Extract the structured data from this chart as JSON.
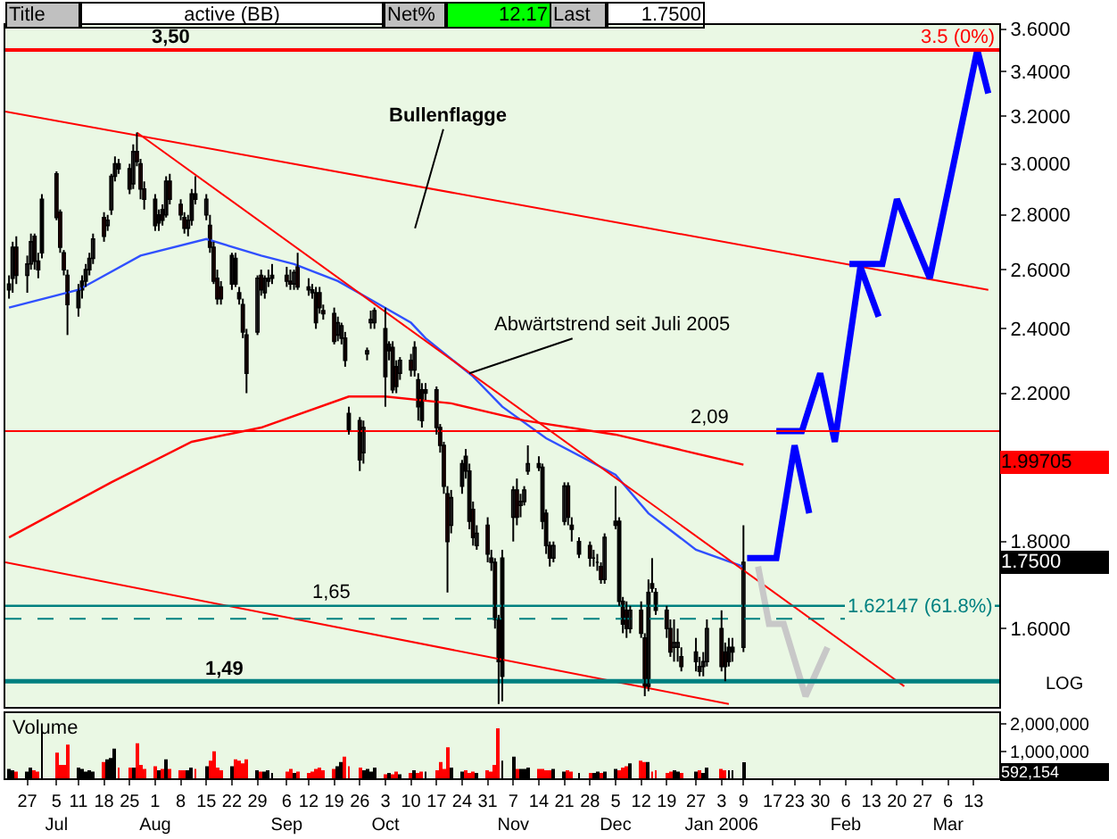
{
  "chart_data": [
    {
      "type": "candlestick",
      "log": true,
      "tick_labels": "y",
      "xlim": [
        "2005-06-21",
        "2006-03-20"
      ],
      "ylim": [
        1.44,
        3.62
      ],
      "yticks": [
        {
          "value": 1.6,
          "label": "1.6000"
        },
        {
          "value": 1.8,
          "label": "1.8000"
        },
        {
          "value": 2.0,
          "label": null
        },
        {
          "value": 2.2,
          "label": "2.2000"
        },
        {
          "value": 2.4,
          "label": "2.4000"
        },
        {
          "value": 2.6,
          "label": "2.6000"
        },
        {
          "value": 2.8,
          "label": "2.8000"
        },
        {
          "value": 3.0,
          "label": "3.0000"
        },
        {
          "value": 3.2,
          "label": "3.2000"
        },
        {
          "value": 3.4,
          "label": "3.4000"
        },
        {
          "value": 3.6,
          "label": "3.6000"
        }
      ],
      "x": [
        "2005-06-22",
        "2005-06-23",
        "2005-06-24",
        "2005-06-27",
        "2005-06-28",
        "2005-06-29",
        "2005-06-30",
        "2005-07-01",
        "2005-07-05",
        "2005-07-06",
        "2005-07-07",
        "2005-07-08",
        "2005-07-11",
        "2005-07-12",
        "2005-07-13",
        "2005-07-14",
        "2005-07-15",
        "2005-07-18",
        "2005-07-19",
        "2005-07-20",
        "2005-07-21",
        "2005-07-22",
        "2005-07-25",
        "2005-07-26",
        "2005-07-27",
        "2005-07-28",
        "2005-07-29",
        "2005-08-01",
        "2005-08-02",
        "2005-08-03",
        "2005-08-04",
        "2005-08-05",
        "2005-08-08",
        "2005-08-09",
        "2005-08-10",
        "2005-08-11",
        "2005-08-12",
        "2005-08-15",
        "2005-08-16",
        "2005-08-17",
        "2005-08-18",
        "2005-08-19",
        "2005-08-22",
        "2005-08-23",
        "2005-08-24",
        "2005-08-25",
        "2005-08-26",
        "2005-08-29",
        "2005-08-30",
        "2005-08-31",
        "2005-09-01",
        "2005-09-02",
        "2005-09-06",
        "2005-09-07",
        "2005-09-08",
        "2005-09-09",
        "2005-09-12",
        "2005-09-13",
        "2005-09-14",
        "2005-09-15",
        "2005-09-16",
        "2005-09-19",
        "2005-09-20",
        "2005-09-21",
        "2005-09-22",
        "2005-09-23",
        "2005-09-26",
        "2005-09-27",
        "2005-09-28",
        "2005-09-29",
        "2005-09-30",
        "2005-10-03",
        "2005-10-04",
        "2005-10-05",
        "2005-10-06",
        "2005-10-07",
        "2005-10-10",
        "2005-10-11",
        "2005-10-12",
        "2005-10-13",
        "2005-10-14",
        "2005-10-17",
        "2005-10-18",
        "2005-10-19",
        "2005-10-20",
        "2005-10-21",
        "2005-10-24",
        "2005-10-25",
        "2005-10-26",
        "2005-10-27",
        "2005-10-28",
        "2005-10-31",
        "2005-11-01",
        "2005-11-02",
        "2005-11-03",
        "2005-11-04",
        "2005-11-07",
        "2005-11-08",
        "2005-11-09",
        "2005-11-10",
        "2005-11-11",
        "2005-11-14",
        "2005-11-15",
        "2005-11-16",
        "2005-11-17",
        "2005-11-18",
        "2005-11-21",
        "2005-11-22",
        "2005-11-23",
        "2005-11-25",
        "2005-11-28",
        "2005-11-29",
        "2005-11-30",
        "2005-12-01",
        "2005-12-02",
        "2005-12-05",
        "2005-12-06",
        "2005-12-07",
        "2005-12-08",
        "2005-12-09",
        "2005-12-12",
        "2005-12-13",
        "2005-12-14",
        "2005-12-15",
        "2005-12-16",
        "2005-12-19",
        "2005-12-20",
        "2005-12-21",
        "2005-12-22",
        "2005-12-23",
        "2005-12-27",
        "2005-12-28",
        "2005-12-29",
        "2005-12-30",
        "2006-01-03",
        "2006-01-04",
        "2006-01-05",
        "2006-01-06",
        "2006-01-09"
      ],
      "ohlc": [
        [
          2.53,
          2.58,
          2.5,
          2.55
        ],
        [
          2.57,
          2.7,
          2.52,
          2.68
        ],
        [
          2.68,
          2.72,
          2.55,
          2.58
        ],
        [
          2.58,
          2.65,
          2.52,
          2.62
        ],
        [
          2.62,
          2.73,
          2.6,
          2.7
        ],
        [
          2.72,
          2.73,
          2.6,
          2.63
        ],
        [
          2.63,
          2.66,
          2.57,
          2.6
        ],
        [
          2.66,
          2.88,
          2.64,
          2.86
        ],
        [
          2.96,
          2.97,
          2.78,
          2.79
        ],
        [
          2.81,
          2.82,
          2.66,
          2.68
        ],
        [
          2.66,
          2.67,
          2.58,
          2.6
        ],
        [
          2.58,
          2.6,
          2.38,
          2.48
        ],
        [
          2.47,
          2.55,
          2.44,
          2.53
        ],
        [
          2.53,
          2.58,
          2.5,
          2.56
        ],
        [
          2.56,
          2.62,
          2.54,
          2.6
        ],
        [
          2.6,
          2.66,
          2.58,
          2.64
        ],
        [
          2.64,
          2.73,
          2.62,
          2.71
        ],
        [
          2.79,
          2.81,
          2.7,
          2.72
        ],
        [
          2.76,
          2.8,
          2.74,
          2.78
        ],
        [
          2.82,
          2.96,
          2.8,
          2.95
        ],
        [
          2.95,
          3.03,
          2.93,
          3.0
        ],
        [
          3.0,
          3.02,
          2.96,
          2.98
        ],
        [
          2.98,
          3.0,
          2.88,
          2.9
        ],
        [
          2.92,
          3.08,
          2.9,
          3.05
        ],
        [
          3.05,
          3.13,
          2.99,
          3.01
        ],
        [
          3.0,
          3.02,
          2.86,
          2.9
        ],
        [
          2.9,
          2.93,
          2.82,
          2.86
        ],
        [
          2.86,
          2.88,
          2.74,
          2.76
        ],
        [
          2.77,
          2.82,
          2.74,
          2.8
        ],
        [
          2.82,
          2.84,
          2.76,
          2.78
        ],
        [
          2.8,
          2.95,
          2.79,
          2.93
        ],
        [
          2.93,
          2.96,
          2.84,
          2.86
        ],
        [
          2.84,
          2.86,
          2.78,
          2.8
        ],
        [
          2.79,
          2.81,
          2.73,
          2.75
        ],
        [
          2.75,
          2.8,
          2.72,
          2.78
        ],
        [
          2.78,
          2.9,
          2.76,
          2.88
        ],
        [
          2.88,
          2.95,
          2.84,
          2.86
        ],
        [
          2.8,
          2.88,
          2.78,
          2.86
        ],
        [
          2.76,
          2.8,
          2.66,
          2.68
        ],
        [
          2.68,
          2.7,
          2.55,
          2.56
        ],
        [
          2.57,
          2.6,
          2.48,
          2.5
        ],
        [
          2.54,
          2.56,
          2.48,
          2.5
        ],
        [
          2.55,
          2.66,
          2.53,
          2.65
        ],
        [
          2.64,
          2.66,
          2.54,
          2.55
        ],
        [
          2.52,
          2.54,
          2.48,
          2.5
        ],
        [
          2.48,
          2.5,
          2.37,
          2.39
        ],
        [
          2.38,
          2.4,
          2.2,
          2.26
        ],
        [
          2.39,
          2.58,
          2.38,
          2.57
        ],
        [
          2.58,
          2.6,
          2.51,
          2.53
        ],
        [
          2.52,
          2.58,
          2.5,
          2.57
        ],
        [
          2.56,
          2.6,
          2.54,
          2.57
        ],
        [
          2.57,
          2.62,
          2.55,
          2.58
        ],
        [
          2.58,
          2.61,
          2.54,
          2.56
        ],
        [
          2.56,
          2.6,
          2.53,
          2.55
        ],
        [
          2.55,
          2.6,
          2.53,
          2.59
        ],
        [
          2.61,
          2.66,
          2.53,
          2.54
        ],
        [
          2.54,
          2.57,
          2.51,
          2.53
        ],
        [
          2.53,
          2.55,
          2.5,
          2.52
        ],
        [
          2.52,
          2.54,
          2.4,
          2.42
        ],
        [
          2.52,
          2.54,
          2.45,
          2.47
        ],
        [
          2.46,
          2.48,
          2.43,
          2.45
        ],
        [
          2.45,
          2.47,
          2.35,
          2.36
        ],
        [
          2.38,
          2.44,
          2.36,
          2.42
        ],
        [
          2.37,
          2.42,
          2.35,
          2.41
        ],
        [
          2.37,
          2.39,
          2.28,
          2.3
        ],
        [
          2.14,
          2.16,
          2.08,
          2.09
        ],
        [
          2.12,
          2.13,
          1.98,
          2.01
        ],
        [
          2.03,
          2.12,
          2.0,
          2.1
        ],
        [
          2.32,
          2.34,
          2.3,
          2.33
        ],
        [
          2.42,
          2.46,
          2.4,
          2.43
        ],
        [
          2.42,
          2.47,
          2.4,
          2.46
        ],
        [
          2.4,
          2.47,
          2.16,
          2.25
        ],
        [
          2.33,
          2.36,
          2.3,
          2.35
        ],
        [
          2.34,
          2.36,
          2.2,
          2.21
        ],
        [
          2.28,
          2.3,
          2.2,
          2.22
        ],
        [
          2.26,
          2.31,
          2.24,
          2.3
        ],
        [
          2.3,
          2.32,
          2.25,
          2.27
        ],
        [
          2.27,
          2.36,
          2.25,
          2.34
        ],
        [
          2.24,
          2.26,
          2.12,
          2.16
        ],
        [
          2.21,
          2.23,
          2.1,
          2.12
        ],
        [
          2.2,
          2.23,
          2.18,
          2.21
        ],
        [
          2.21,
          2.22,
          2.08,
          2.1
        ],
        [
          2.1,
          2.11,
          2.03,
          2.05
        ],
        [
          2.05,
          2.06,
          1.92,
          1.94
        ],
        [
          1.92,
          1.94,
          1.68,
          1.8
        ],
        [
          1.84,
          1.93,
          1.82,
          1.91
        ],
        [
          1.94,
          2.01,
          1.92,
          2.0
        ],
        [
          2.02,
          2.04,
          1.96,
          1.98
        ],
        [
          1.98,
          2.0,
          1.83,
          1.85
        ],
        [
          1.88,
          1.9,
          1.79,
          1.81
        ],
        [
          1.79,
          1.84,
          1.78,
          1.82
        ],
        [
          1.84,
          1.86,
          1.75,
          1.77
        ],
        [
          1.76,
          1.78,
          1.73,
          1.75
        ],
        [
          1.75,
          1.76,
          1.6,
          1.62
        ],
        [
          1.62,
          1.63,
          1.445,
          1.53
        ],
        [
          1.5,
          1.78,
          1.45,
          1.76
        ],
        [
          1.86,
          1.94,
          1.8,
          1.93
        ],
        [
          1.93,
          1.96,
          1.84,
          1.86
        ],
        [
          1.89,
          1.92,
          1.86,
          1.9
        ],
        [
          1.9,
          1.94,
          1.89,
          1.93
        ],
        [
          1.98,
          2.05,
          1.97,
          2.0
        ],
        [
          2.0,
          2.02,
          1.98,
          1.99
        ],
        [
          1.99,
          2.0,
          1.83,
          1.85
        ],
        [
          1.87,
          1.88,
          1.77,
          1.79
        ],
        [
          1.79,
          1.8,
          1.74,
          1.76
        ],
        [
          1.76,
          1.8,
          1.75,
          1.79
        ],
        [
          1.85,
          1.95,
          1.84,
          1.94
        ],
        [
          1.94,
          1.95,
          1.84,
          1.86
        ],
        [
          1.84,
          1.86,
          1.8,
          1.83
        ],
        [
          1.77,
          1.81,
          1.76,
          1.8
        ],
        [
          1.79,
          1.8,
          1.74,
          1.76
        ],
        [
          1.76,
          1.78,
          1.74,
          1.76
        ],
        [
          1.75,
          1.77,
          1.73,
          1.75
        ],
        [
          1.74,
          1.75,
          1.7,
          1.71
        ],
        [
          1.71,
          1.82,
          1.7,
          1.81
        ],
        [
          1.84,
          1.94,
          1.83,
          1.85
        ],
        [
          1.85,
          1.86,
          1.65,
          1.66
        ],
        [
          1.66,
          1.67,
          1.59,
          1.61
        ],
        [
          1.64,
          1.66,
          1.58,
          1.6
        ],
        [
          1.6,
          1.65,
          1.59,
          1.64
        ],
        [
          1.64,
          1.66,
          1.58,
          1.59
        ],
        [
          1.58,
          1.59,
          1.46,
          1.48
        ],
        [
          1.48,
          1.71,
          1.47,
          1.68
        ],
        [
          1.7,
          1.76,
          1.68,
          1.69
        ],
        [
          1.68,
          1.69,
          1.63,
          1.64
        ],
        [
          1.64,
          1.65,
          1.58,
          1.6
        ],
        [
          1.6,
          1.62,
          1.54,
          1.55
        ],
        [
          1.56,
          1.62,
          1.53,
          1.57
        ],
        [
          1.56,
          1.6,
          1.53,
          1.57
        ],
        [
          1.54,
          1.56,
          1.51,
          1.52
        ],
        [
          1.53,
          1.58,
          1.51,
          1.55
        ],
        [
          1.52,
          1.54,
          1.5,
          1.51
        ],
        [
          1.52,
          1.55,
          1.5,
          1.53
        ],
        [
          1.53,
          1.62,
          1.52,
          1.6
        ],
        [
          1.6,
          1.64,
          1.51,
          1.52
        ],
        [
          1.55,
          1.57,
          1.49,
          1.52
        ],
        [
          1.53,
          1.58,
          1.52,
          1.56
        ],
        [
          1.55,
          1.58,
          1.53,
          1.56
        ],
        [
          1.56,
          1.84,
          1.55,
          1.75
        ]
      ],
      "series": [
        {
          "type": "line",
          "color": "#3050ff",
          "x": [
            "2005-06-22",
            "2005-07-11",
            "2005-07-28",
            "2005-08-15",
            "2005-08-30",
            "2005-09-08",
            "2005-09-20",
            "2005-09-30",
            "2005-10-10",
            "2005-10-14",
            "2005-10-27",
            "2005-11-04",
            "2005-11-16",
            "2005-12-05",
            "2005-12-14",
            "2005-12-27",
            "2006-01-09"
          ],
          "values": [
            2.47,
            2.53,
            2.65,
            2.71,
            2.65,
            2.62,
            2.56,
            2.49,
            2.42,
            2.37,
            2.25,
            2.16,
            2.07,
            1.97,
            1.87,
            1.78,
            1.74
          ]
        },
        {
          "type": "line",
          "color": "#ff0000",
          "x": [
            "2005-06-22",
            "2005-07-20",
            "2005-08-11",
            "2005-08-30",
            "2005-09-23",
            "2005-10-03",
            "2005-10-21",
            "2005-11-10",
            "2005-12-05",
            "2006-01-09"
          ],
          "values": [
            1.81,
            1.95,
            2.06,
            2.1,
            2.19,
            2.19,
            2.17,
            2.12,
            2.08,
            1.99705
          ]
        },
        {
          "type": "line",
          "color": "#ff0000",
          "x": [
            "2005-06-21",
            "2006-03-17"
          ],
          "values": [
            3.22,
            2.53
          ]
        },
        {
          "type": "line",
          "color": "#ff0000",
          "x": [
            "2005-06-21",
            "2006-01-05"
          ],
          "values": [
            1.75,
            1.445
          ]
        },
        {
          "type": "line",
          "color": "#ff0000",
          "x": [
            "2005-07-27",
            "2006-02-22"
          ],
          "values": [
            3.13,
            1.48
          ]
        },
        {
          "type": "line",
          "color": "#0000ff",
          "x": [
            "2006-01-10",
            "2006-01-18",
            "2006-01-23",
            "2006-01-27"
          ],
          "values": [
            1.76,
            1.76,
            2.05,
            1.87
          ]
        },
        {
          "type": "line",
          "color": "#0000ff",
          "x": [
            "2006-01-18",
            "2006-01-25",
            "2006-01-30",
            "2006-02-03",
            "2006-02-10",
            "2006-02-15"
          ],
          "values": [
            2.09,
            2.09,
            2.26,
            2.06,
            2.61,
            2.44
          ]
        },
        {
          "type": "line",
          "color": "#0000ff",
          "x": [
            "2006-02-07",
            "2006-02-16",
            "2006-02-20",
            "2006-03-01",
            "2006-03-14",
            "2006-03-17"
          ],
          "values": [
            2.62,
            2.62,
            2.86,
            2.57,
            3.5,
            3.3
          ]
        },
        {
          "type": "line",
          "color": "#c8c8c8",
          "x": [
            "2006-01-13",
            "2006-01-16",
            "2006-01-20",
            "2006-01-26",
            "2006-02-01"
          ],
          "values": [
            1.74,
            1.61,
            1.61,
            1.46,
            1.56
          ]
        }
      ],
      "ref_lines": [
        {
          "axis": "y",
          "value": 3.5,
          "label": "3,50",
          "color": "#ff0000"
        },
        {
          "axis": "y",
          "value": 2.09,
          "label": "2,09",
          "color": "#ff0000"
        },
        {
          "axis": "y",
          "value": 1.65,
          "label": "1,65",
          "color": "#008080"
        },
        {
          "axis": "y",
          "value": 1.62147,
          "label": "1.62147 (61.8%)",
          "color": "#008080",
          "line_style": "dashed"
        },
        {
          "axis": "y",
          "value": 1.49,
          "label": "1,49",
          "color": "#008080"
        }
      ],
      "annotations": [
        "Title",
        "active (BB)",
        "Net%",
        "12.17",
        "Last",
        "1.7500",
        "LOG",
        "Bullenflagge",
        {
          "text": "Abwärtstrend seit Juli 2005",
          "x": "2005-10-26",
          "y": 2.26
        },
        {
          "text": "3.5 (0%)",
          "y": 3.5
        },
        "1.99705",
        "1.7500"
      ]
    },
    {
      "type": "bar",
      "title": "Volume",
      "xlim": [
        "2005-06-21",
        "2006-03-20"
      ],
      "ylim": [
        0,
        2400000
      ],
      "yticks": [
        {
          "value": 1000000,
          "label": "1,000,000"
        },
        {
          "value": 2000000,
          "label": "2,000,000"
        }
      ],
      "xticks": [
        {
          "value": "2005-06-27",
          "label": "27"
        },
        {
          "value": "2005-07-05",
          "label": "5\nJul"
        },
        {
          "value": "2005-07-11",
          "label": "11"
        },
        {
          "value": "2005-07-18",
          "label": "18"
        },
        {
          "value": "2005-07-25",
          "label": "25"
        },
        {
          "value": "2005-08-01",
          "label": "1\nAug"
        },
        {
          "value": "2005-08-08",
          "label": "8"
        },
        {
          "value": "2005-08-15",
          "label": "15"
        },
        {
          "value": "2005-08-22",
          "label": "22"
        },
        {
          "value": "2005-08-29",
          "label": "29"
        },
        {
          "value": "2005-09-06",
          "label": "6\nSep"
        },
        {
          "value": "2005-09-12",
          "label": "12"
        },
        {
          "value": "2005-09-19",
          "label": "19"
        },
        {
          "value": "2005-09-26",
          "label": "26"
        },
        {
          "value": "2005-10-03",
          "label": "3\nOct"
        },
        {
          "value": "2005-10-10",
          "label": "10"
        },
        {
          "value": "2005-10-17",
          "label": "17"
        },
        {
          "value": "2005-10-24",
          "label": "24"
        },
        {
          "value": "2005-10-31",
          "label": "31"
        },
        {
          "value": "2005-11-07",
          "label": "7\nNov"
        },
        {
          "value": "2005-11-14",
          "label": "14"
        },
        {
          "value": "2005-11-21",
          "label": "21"
        },
        {
          "value": "2005-11-28",
          "label": "28"
        },
        {
          "value": "2005-12-05",
          "label": "5\nDec"
        },
        {
          "value": "2005-12-12",
          "label": "12"
        },
        {
          "value": "2005-12-19",
          "label": "19"
        },
        {
          "value": "2005-12-27",
          "label": "27"
        },
        {
          "value": "2006-01-03",
          "label": "3\nJan 2006"
        },
        {
          "value": "2006-01-09",
          "label": "9"
        },
        {
          "value": "2006-01-17",
          "label": "17"
        },
        {
          "value": "2006-01-23",
          "label": "23"
        },
        {
          "value": "2006-01-30",
          "label": "30"
        },
        {
          "value": "2006-02-06",
          "label": "6\nFeb"
        },
        {
          "value": "2006-02-13",
          "label": "13"
        },
        {
          "value": "2006-02-20",
          "label": "20"
        },
        {
          "value": "2006-02-27",
          "label": "27"
        },
        {
          "value": "2006-03-06",
          "label": "6\nMar"
        },
        {
          "value": "2006-03-13",
          "label": "13"
        }
      ],
      "x": [
        "2005-06-22",
        "2005-06-23",
        "2005-06-24",
        "2005-06-27",
        "2005-06-28",
        "2005-06-29",
        "2005-06-30",
        "2005-07-01",
        "2005-07-05",
        "2005-07-06",
        "2005-07-07",
        "2005-07-08",
        "2005-07-11",
        "2005-07-12",
        "2005-07-13",
        "2005-07-14",
        "2005-07-15",
        "2005-07-18",
        "2005-07-19",
        "2005-07-20",
        "2005-07-21",
        "2005-07-22",
        "2005-07-25",
        "2005-07-26",
        "2005-07-27",
        "2005-07-28",
        "2005-07-29",
        "2005-08-01",
        "2005-08-02",
        "2005-08-03",
        "2005-08-04",
        "2005-08-05",
        "2005-08-08",
        "2005-08-09",
        "2005-08-10",
        "2005-08-11",
        "2005-08-12",
        "2005-08-15",
        "2005-08-16",
        "2005-08-17",
        "2005-08-18",
        "2005-08-19",
        "2005-08-22",
        "2005-08-23",
        "2005-08-24",
        "2005-08-25",
        "2005-08-26",
        "2005-08-29",
        "2005-08-30",
        "2005-08-31",
        "2005-09-01",
        "2005-09-02",
        "2005-09-06",
        "2005-09-07",
        "2005-09-08",
        "2005-09-09",
        "2005-09-12",
        "2005-09-13",
        "2005-09-14",
        "2005-09-15",
        "2005-09-16",
        "2005-09-19",
        "2005-09-20",
        "2005-09-21",
        "2005-09-22",
        "2005-09-23",
        "2005-09-26",
        "2005-09-27",
        "2005-09-28",
        "2005-09-29",
        "2005-09-30",
        "2005-10-03",
        "2005-10-04",
        "2005-10-05",
        "2005-10-06",
        "2005-10-07",
        "2005-10-10",
        "2005-10-11",
        "2005-10-12",
        "2005-10-13",
        "2005-10-14",
        "2005-10-17",
        "2005-10-18",
        "2005-10-19",
        "2005-10-20",
        "2005-10-21",
        "2005-10-24",
        "2005-10-25",
        "2005-10-26",
        "2005-10-27",
        "2005-10-28",
        "2005-10-31",
        "2005-11-01",
        "2005-11-02",
        "2005-11-03",
        "2005-11-04",
        "2005-11-07",
        "2005-11-08",
        "2005-11-09",
        "2005-11-10",
        "2005-11-11",
        "2005-11-14",
        "2005-11-15",
        "2005-11-16",
        "2005-11-17",
        "2005-11-18",
        "2005-11-21",
        "2005-11-22",
        "2005-11-23",
        "2005-11-25",
        "2005-11-28",
        "2005-11-29",
        "2005-11-30",
        "2005-12-01",
        "2005-12-02",
        "2005-12-05",
        "2005-12-06",
        "2005-12-07",
        "2005-12-08",
        "2005-12-09",
        "2005-12-12",
        "2005-12-13",
        "2005-12-14",
        "2005-12-15",
        "2005-12-16",
        "2005-12-19",
        "2005-12-20",
        "2005-12-21",
        "2005-12-22",
        "2005-12-23",
        "2005-12-27",
        "2005-12-28",
        "2005-12-29",
        "2005-12-30",
        "2006-01-03",
        "2006-01-04",
        "2006-01-05",
        "2006-01-06",
        "2006-01-09"
      ],
      "values": [
        350000,
        300000,
        250000,
        250000,
        400000,
        300000,
        250000,
        1750000,
        950000,
        500000,
        500000,
        1250000,
        400000,
        350000,
        250000,
        300000,
        250000,
        600000,
        700000,
        750000,
        1100000,
        400000,
        400000,
        400000,
        1300000,
        500000,
        350000,
        450000,
        300000,
        350000,
        700000,
        350000,
        300000,
        300000,
        300000,
        400000,
        350000,
        450000,
        650000,
        1000000,
        400000,
        300000,
        450000,
        700000,
        650000,
        550000,
        700000,
        300000,
        250000,
        250000,
        300000,
        200000,
        250000,
        350000,
        200000,
        250000,
        200000,
        250000,
        350000,
        400000,
        300000,
        350000,
        450000,
        600000,
        800000,
        450000,
        400000,
        300000,
        350000,
        250000,
        400000,
        150000,
        200000,
        150000,
        250000,
        150000,
        200000,
        300000,
        200000,
        250000,
        250000,
        300000,
        600000,
        350000,
        1150000,
        400000,
        250000,
        300000,
        200000,
        250000,
        200000,
        300000,
        250000,
        500000,
        1850000,
        650000,
        800000,
        350000,
        350000,
        350000,
        400000,
        350000,
        350000,
        300000,
        300000,
        350000,
        250000,
        300000,
        250000,
        200000,
        200000,
        200000,
        250000,
        200000,
        250000,
        350000,
        300000,
        400000,
        450000,
        550000,
        650000,
        600000,
        600000,
        250000,
        300000,
        200000,
        250000,
        300000,
        250000,
        200000,
        250000,
        300000,
        200000,
        400000,
        350000,
        300000,
        300000,
        300000,
        592154
      ],
      "colors": [
        "#000000",
        "#000000",
        "#ff0000",
        "#000000",
        "#000000",
        "#ff0000",
        "#ff0000",
        "#000000",
        "#ff0000",
        "#ff0000",
        "#ff0000",
        "#ff0000",
        "#000000",
        "#000000",
        "#000000",
        "#000000",
        "#000000",
        "#ff0000",
        "#000000",
        "#000000",
        "#000000",
        "#ff0000",
        "#ff0000",
        "#000000",
        "#ff0000",
        "#ff0000",
        "#ff0000",
        "#ff0000",
        "#000000",
        "#ff0000",
        "#000000",
        "#ff0000",
        "#ff0000",
        "#ff0000",
        "#000000",
        "#000000",
        "#ff0000",
        "#000000",
        "#ff0000",
        "#ff0000",
        "#ff0000",
        "#ff0000",
        "#000000",
        "#ff0000",
        "#ff0000",
        "#ff0000",
        "#ff0000",
        "#000000",
        "#ff0000",
        "#000000",
        "#000000",
        "#000000",
        "#ff0000",
        "#ff0000",
        "#000000",
        "#ff0000",
        "#ff0000",
        "#ff0000",
        "#ff0000",
        "#ff0000",
        "#ff0000",
        "#ff0000",
        "#000000",
        "#000000",
        "#ff0000",
        "#ff0000",
        "#ff0000",
        "#000000",
        "#000000",
        "#000000",
        "#000000",
        "#ff0000",
        "#000000",
        "#ff0000",
        "#ff0000",
        "#000000",
        "#ff0000",
        "#000000",
        "#ff0000",
        "#ff0000",
        "#000000",
        "#ff0000",
        "#ff0000",
        "#ff0000",
        "#ff0000",
        "#000000",
        "#000000",
        "#ff0000",
        "#ff0000",
        "#ff0000",
        "#000000",
        "#ff0000",
        "#ff0000",
        "#ff0000",
        "#ff0000",
        "#000000",
        "#000000",
        "#ff0000",
        "#000000",
        "#000000",
        "#000000",
        "#ff0000",
        "#ff0000",
        "#ff0000",
        "#ff0000",
        "#000000",
        "#000000",
        "#ff0000",
        "#ff0000",
        "#000000",
        "#ff0000",
        "#000000",
        "#000000",
        "#ff0000",
        "#000000",
        "#000000",
        "#ff0000",
        "#ff0000",
        "#ff0000",
        "#000000",
        "#ff0000",
        "#ff0000",
        "#000000",
        "#ff0000",
        "#ff0000",
        "#ff0000",
        "#ff0000",
        "#000000",
        "#000000",
        "#ff0000",
        "#000000",
        "#ff0000",
        "#000000",
        "#000000",
        "#ff0000",
        "#ff0000",
        "#000000",
        "#000000",
        "#000000"
      ],
      "annotations": [
        "592,154"
      ]
    }
  ]
}
